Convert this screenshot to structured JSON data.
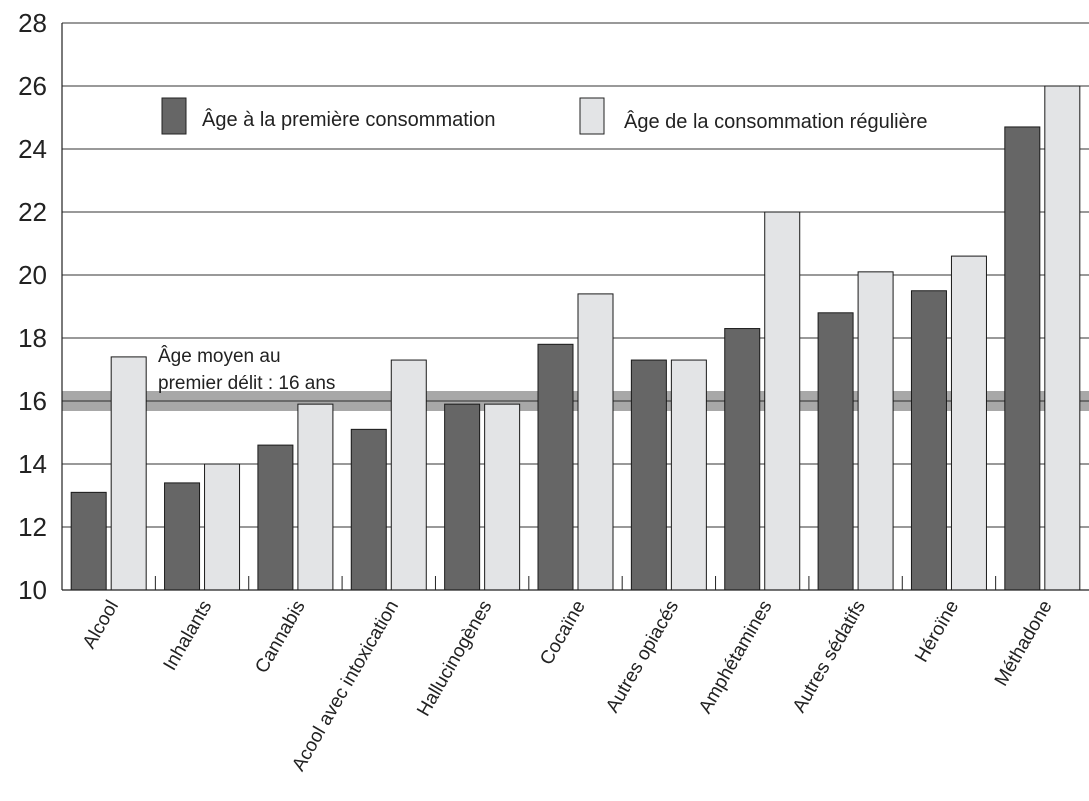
{
  "chart_data": {
    "type": "bar",
    "categories": [
      "Alcool",
      "Inhalants",
      "Cannabis",
      "Acool avec intoxication",
      "Hallucinogènes",
      "Cocaïne",
      "Autres opiacés",
      "Amphétamines",
      "Autres sédatifs",
      "Héroïne",
      "Méthadone"
    ],
    "series": [
      {
        "name": "Âge à la première consommation",
        "values": [
          13.1,
          13.4,
          14.6,
          15.1,
          15.9,
          17.8,
          17.3,
          18.3,
          18.8,
          19.5,
          24.7
        ]
      },
      {
        "name": "Âge de la consommation régulière",
        "values": [
          17.4,
          14.0,
          15.9,
          17.3,
          15.9,
          19.4,
          17.3,
          22.0,
          20.1,
          20.6,
          26.0
        ]
      }
    ],
    "ylim": [
      10,
      28
    ],
    "yticks": [
      10,
      12,
      14,
      16,
      18,
      20,
      22,
      24,
      26,
      28
    ],
    "grid": true,
    "legend_position": "top",
    "reference_line": {
      "value": 16,
      "label_line1": "Âge moyen au",
      "label_line2": "premier délit : 16 ans"
    },
    "colors": {
      "series1": "#666666",
      "series2": "#e3e4e6",
      "reference_band": "#a8a8a8",
      "reference_line": "#6a6a6a"
    }
  }
}
